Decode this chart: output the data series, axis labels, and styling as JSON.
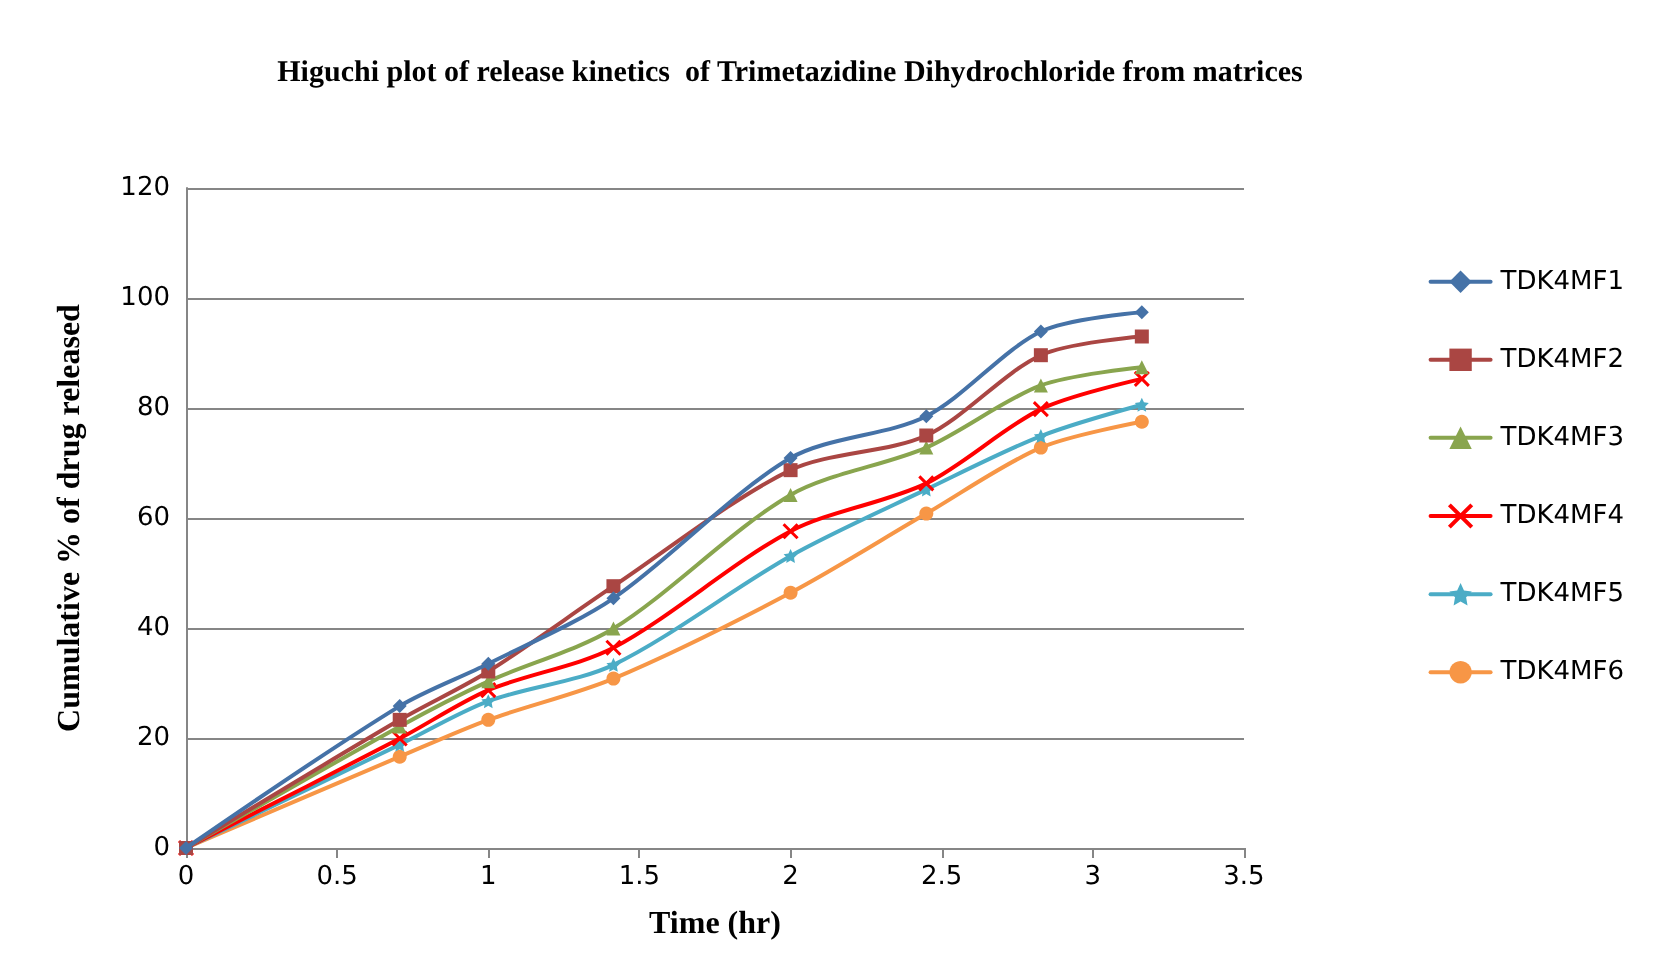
{
  "chart_data": {
    "type": "line",
    "title": "Higuchi plot of release kinetics  of Trimetazidine Dihydrochloride from matrices",
    "xlabel": "Time (hr)",
    "ylabel": "Cumulative % of drug released",
    "x": [
      0,
      0.707,
      1,
      1.414,
      2,
      2.449,
      2.828,
      3.162
    ],
    "series": [
      {
        "name": "TDK4MF1",
        "color": "#4572a7",
        "marker": "diamond",
        "values": [
          0,
          25.8,
          33.5,
          45.4,
          70.9,
          78.5,
          93.9,
          97.4
        ]
      },
      {
        "name": "TDK4MF2",
        "color": "#aa4643",
        "marker": "square",
        "values": [
          0,
          23.3,
          32.1,
          47.6,
          68.7,
          75,
          89.6,
          93
        ]
      },
      {
        "name": "TDK4MF3",
        "color": "#89a54e",
        "marker": "triangle",
        "values": [
          0,
          22.1,
          30.3,
          39.9,
          64.2,
          72.8,
          84.1,
          87.4
        ]
      },
      {
        "name": "TDK4MF4",
        "color": "#ff0000",
        "marker": "cross",
        "values": [
          0,
          19.9,
          28.7,
          36.4,
          57.6,
          66.3,
          79.8,
          85.3
        ]
      },
      {
        "name": "TDK4MF5",
        "color": "#4bacc6",
        "marker": "star",
        "values": [
          0,
          18.8,
          26.7,
          33.3,
          53.1,
          65.2,
          74.9,
          80.6
        ]
      },
      {
        "name": "TDK4MF6",
        "color": "#f79646",
        "marker": "circle",
        "values": [
          0,
          16.6,
          23.3,
          30.8,
          46.4,
          60.8,
          72.8,
          77.5
        ]
      }
    ],
    "xlim": [
      0,
      3.5
    ],
    "xticks": [
      0,
      0.5,
      1,
      1.5,
      2,
      2.5,
      3,
      3.5
    ],
    "ylim": [
      0,
      120
    ],
    "yticks": [
      0,
      20,
      40,
      60,
      80,
      100,
      120
    ],
    "grid": "y",
    "legend": "right",
    "line_style": "solid"
  }
}
